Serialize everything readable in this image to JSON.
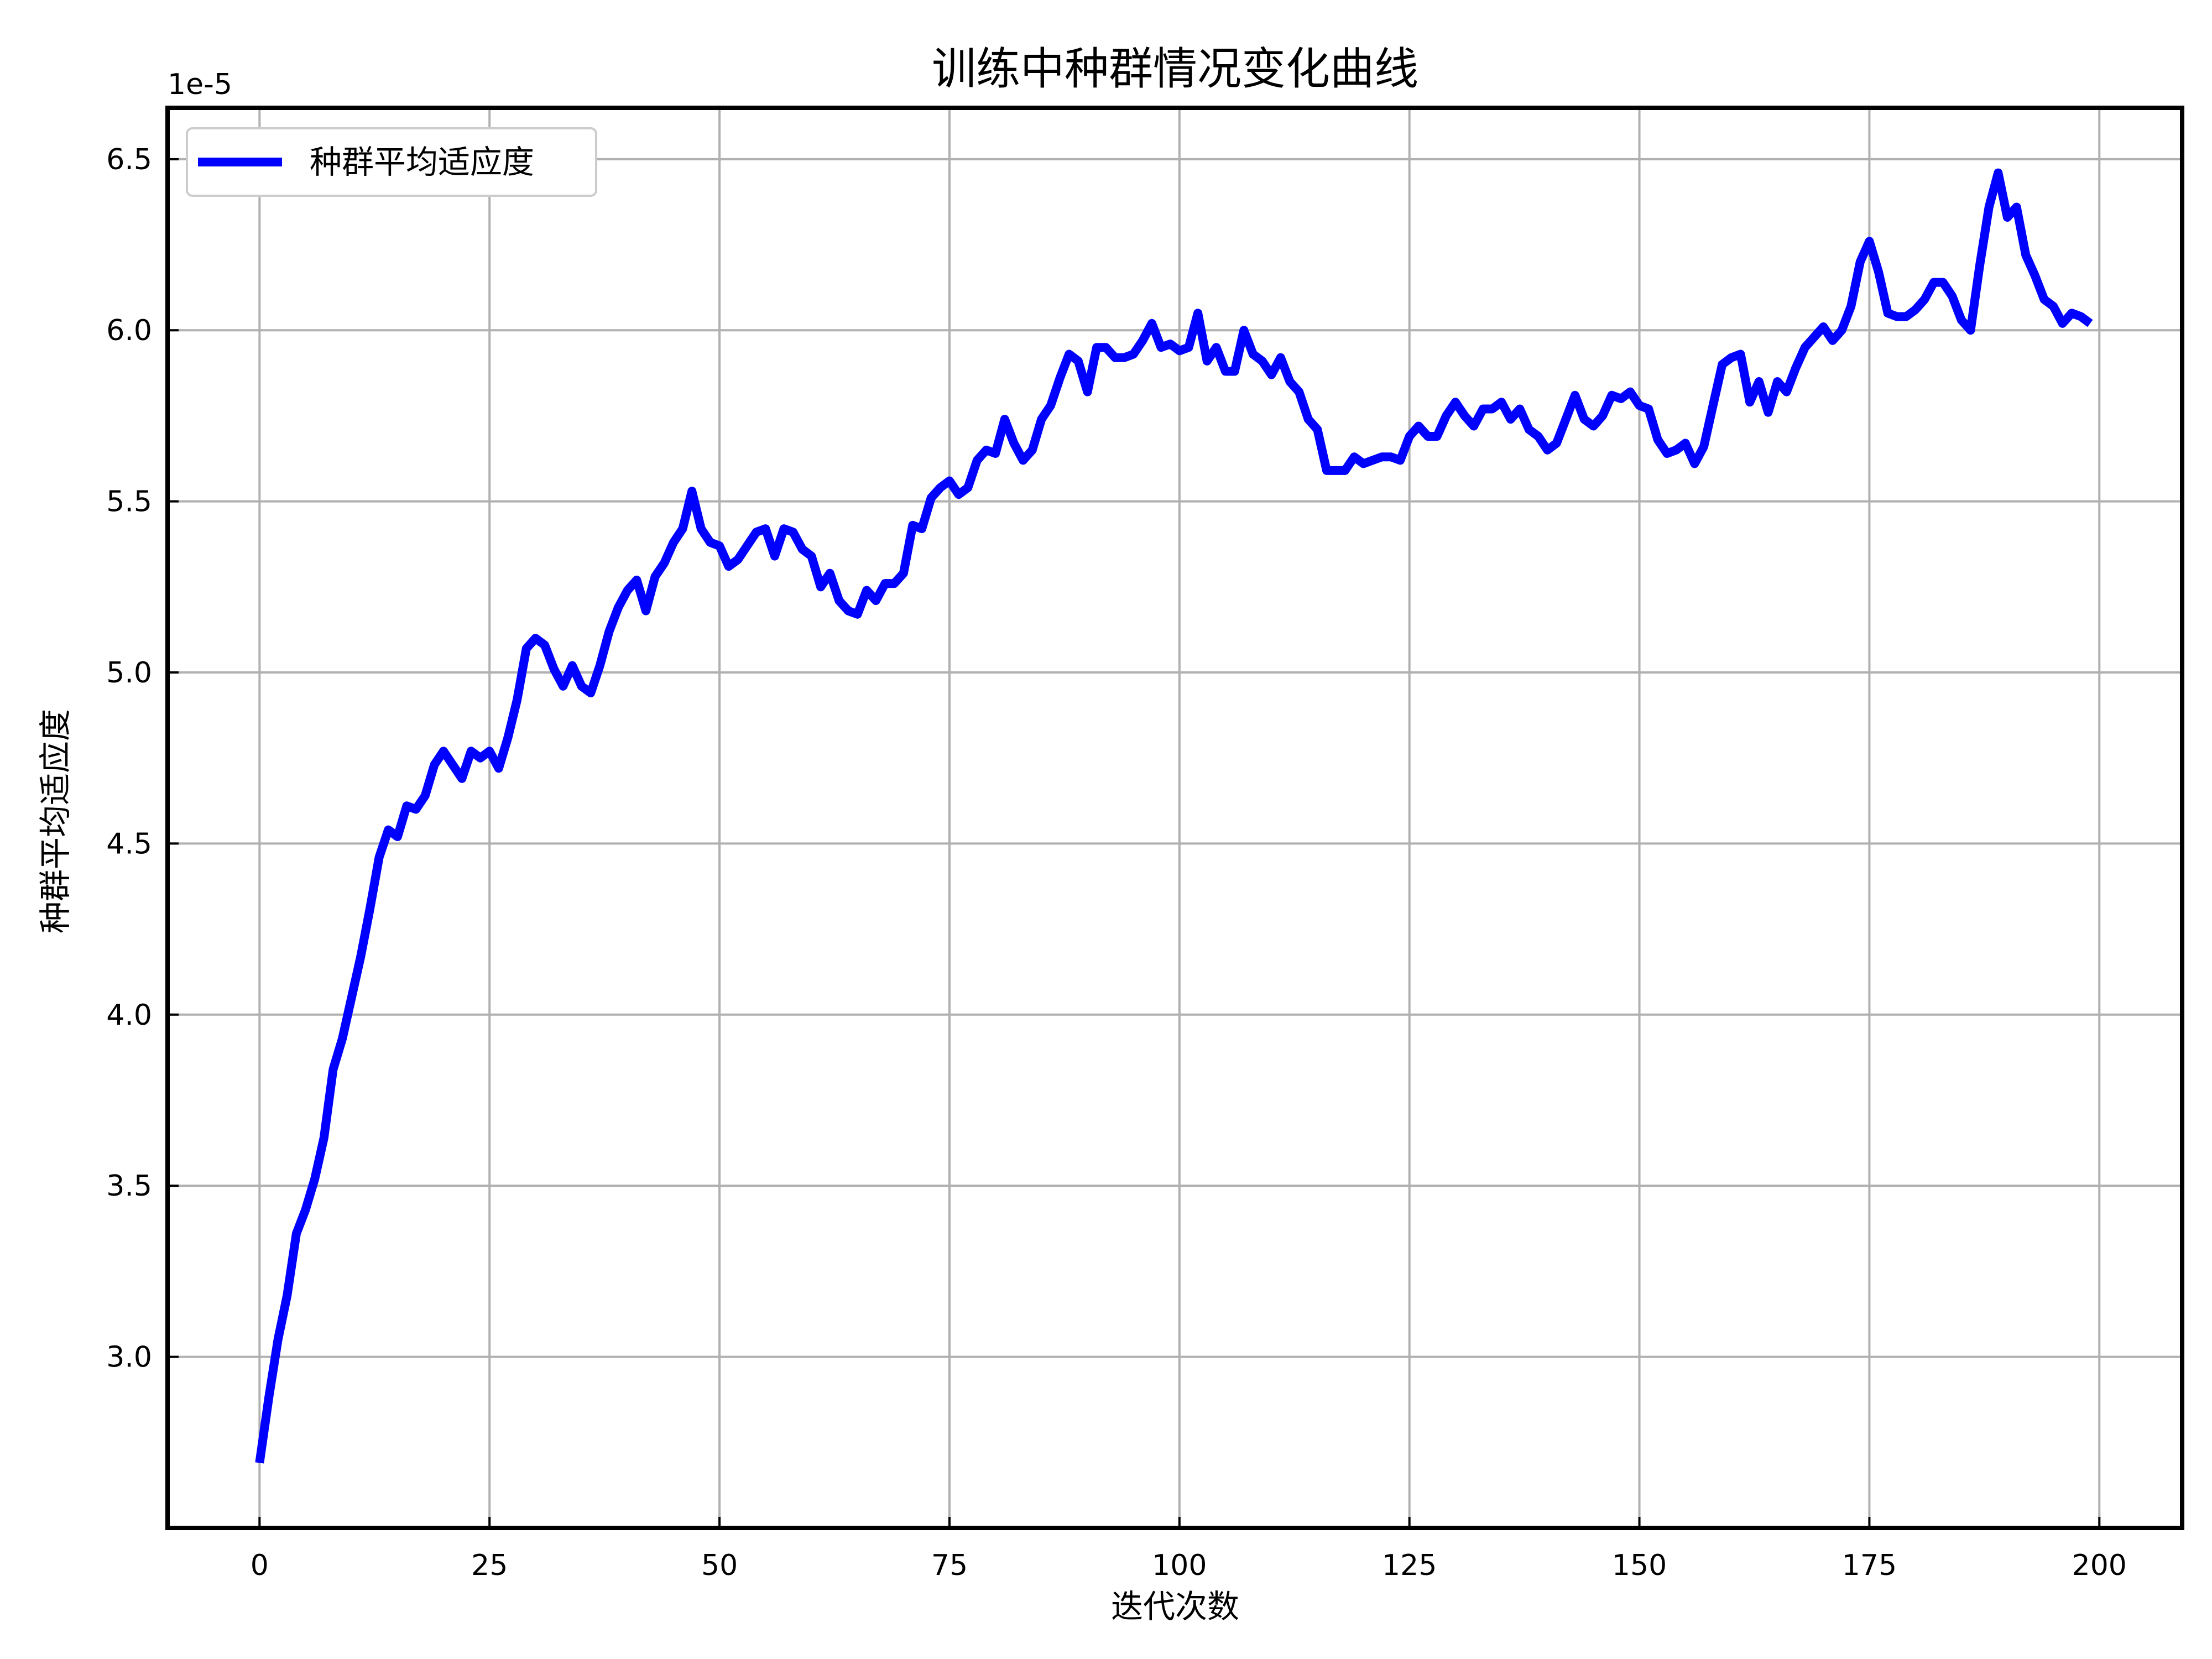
{
  "chart_data": {
    "type": "line",
    "title": "训练中种群情况变化曲线",
    "xlabel": "迭代次数",
    "ylabel": "种群平均适应度",
    "offset_label": "1e-5",
    "xlim": [
      -10,
      209
    ],
    "ylim": [
      2.5,
      6.65
    ],
    "xticks": [
      0,
      25,
      50,
      75,
      100,
      125,
      150,
      175,
      200
    ],
    "xtick_labels": [
      "0",
      "25",
      "50",
      "75",
      "100",
      "125",
      "150",
      "175",
      "200"
    ],
    "yticks": [
      3.0,
      3.5,
      4.0,
      4.5,
      5.0,
      5.5,
      6.0,
      6.5
    ],
    "ytick_labels": [
      "3.0",
      "3.5",
      "4.0",
      "4.5",
      "5.0",
      "5.5",
      "6.0",
      "6.5"
    ],
    "grid": true,
    "legend": {
      "position": "upper-left",
      "entries": [
        "种群平均适应度"
      ]
    },
    "series": [
      {
        "name": "种群平均适应度",
        "color": "#0000ff",
        "x": [
          0,
          1,
          2,
          3,
          4,
          5,
          6,
          7,
          8,
          9,
          10,
          11,
          12,
          13,
          14,
          15,
          16,
          17,
          18,
          19,
          20,
          21,
          22,
          23,
          24,
          25,
          26,
          27,
          28,
          29,
          30,
          31,
          32,
          33,
          34,
          35,
          36,
          37,
          38,
          39,
          40,
          41,
          42,
          43,
          44,
          45,
          46,
          47,
          48,
          49,
          50,
          51,
          52,
          53,
          54,
          55,
          56,
          57,
          58,
          59,
          60,
          61,
          62,
          63,
          64,
          65,
          66,
          67,
          68,
          69,
          70,
          71,
          72,
          73,
          74,
          75,
          76,
          77,
          78,
          79,
          80,
          81,
          82,
          83,
          84,
          85,
          86,
          87,
          88,
          89,
          90,
          91,
          92,
          93,
          94,
          95,
          96,
          97,
          98,
          99,
          100,
          101,
          102,
          103,
          104,
          105,
          106,
          107,
          108,
          109,
          110,
          111,
          112,
          113,
          114,
          115,
          116,
          117,
          118,
          119,
          120,
          121,
          122,
          123,
          124,
          125,
          126,
          127,
          128,
          129,
          130,
          131,
          132,
          133,
          134,
          135,
          136,
          137,
          138,
          139,
          140,
          141,
          142,
          143,
          144,
          145,
          146,
          147,
          148,
          149,
          150,
          151,
          152,
          153,
          154,
          155,
          156,
          157,
          158,
          159,
          160,
          161,
          162,
          163,
          164,
          165,
          166,
          167,
          168,
          169,
          170,
          171,
          172,
          173,
          174,
          175,
          176,
          177,
          178,
          179,
          180,
          181,
          182,
          183,
          184,
          185,
          186,
          187,
          188,
          189,
          190,
          191,
          192,
          193,
          194,
          195,
          196,
          197,
          198,
          199
        ],
        "values": [
          2.69,
          2.88,
          3.05,
          3.18,
          3.36,
          3.43,
          3.52,
          3.64,
          3.84,
          3.93,
          4.05,
          4.17,
          4.31,
          4.46,
          4.54,
          4.52,
          4.61,
          4.6,
          4.64,
          4.73,
          4.77,
          4.73,
          4.69,
          4.77,
          4.75,
          4.77,
          4.72,
          4.81,
          4.92,
          5.07,
          5.1,
          5.08,
          5.01,
          4.96,
          5.02,
          4.96,
          4.94,
          5.02,
          5.12,
          5.19,
          5.24,
          5.27,
          5.18,
          5.28,
          5.32,
          5.38,
          5.42,
          5.53,
          5.42,
          5.38,
          5.37,
          5.31,
          5.33,
          5.37,
          5.41,
          5.42,
          5.34,
          5.42,
          5.41,
          5.36,
          5.34,
          5.25,
          5.29,
          5.21,
          5.18,
          5.17,
          5.24,
          5.21,
          5.26,
          5.26,
          5.29,
          5.43,
          5.42,
          5.51,
          5.54,
          5.56,
          5.52,
          5.54,
          5.62,
          5.65,
          5.64,
          5.74,
          5.67,
          5.62,
          5.65,
          5.74,
          5.78,
          5.86,
          5.93,
          5.91,
          5.82,
          5.95,
          5.95,
          5.92,
          5.92,
          5.93,
          5.97,
          6.02,
          5.95,
          5.96,
          5.94,
          5.95,
          6.05,
          5.91,
          5.95,
          5.88,
          5.88,
          6.0,
          5.93,
          5.91,
          5.87,
          5.92,
          5.85,
          5.82,
          5.74,
          5.71,
          5.59,
          5.59,
          5.59,
          5.63,
          5.61,
          5.62,
          5.63,
          5.63,
          5.62,
          5.69,
          5.72,
          5.69,
          5.69,
          5.75,
          5.79,
          5.75,
          5.72,
          5.77,
          5.77,
          5.79,
          5.74,
          5.77,
          5.71,
          5.69,
          5.65,
          5.67,
          5.74,
          5.81,
          5.74,
          5.72,
          5.75,
          5.81,
          5.8,
          5.82,
          5.78,
          5.77,
          5.68,
          5.64,
          5.65,
          5.67,
          5.61,
          5.66,
          5.78,
          5.9,
          5.92,
          5.93,
          5.79,
          5.85,
          5.76,
          5.85,
          5.82,
          5.89,
          5.95,
          5.98,
          6.01,
          5.97,
          6.0,
          6.07,
          6.2,
          6.26,
          6.17,
          6.05,
          6.04,
          6.04,
          6.06,
          6.09,
          6.14,
          6.14,
          6.1,
          6.03,
          6.0,
          6.19,
          6.36,
          6.46,
          6.33,
          6.36,
          6.22,
          6.16,
          6.09,
          6.07,
          6.02,
          6.05,
          6.04,
          6.02
        ]
      }
    ]
  }
}
